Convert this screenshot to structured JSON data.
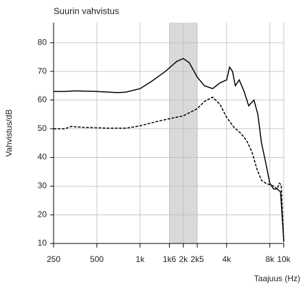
{
  "chart_data": {
    "type": "line",
    "title": "Suurin vahvistus",
    "ylabel": "Vahvistus/dB",
    "xlabel": "Taajuus (Hz)",
    "xscale": "log",
    "xlim": [
      250,
      10000
    ],
    "ylim": [
      10,
      87
    ],
    "grid": true,
    "band": [
      1600,
      2500
    ],
    "band_color": "#d9d9d9",
    "xticks": [
      250,
      500,
      {
        "value": 1000,
        "label": "1k"
      },
      {
        "value": 1600,
        "label": "1k6"
      },
      {
        "value": 2000,
        "label": "2k"
      },
      {
        "value": 2500,
        "label": "2k5"
      },
      {
        "value": 4000,
        "label": "4k"
      },
      {
        "value": 8000,
        "label": "8k"
      },
      {
        "value": 10000,
        "label": "10k"
      }
    ],
    "yticks": [
      10,
      20,
      30,
      40,
      50,
      60,
      70,
      80
    ],
    "series": [
      {
        "color": "#000000",
        "dash": "solid",
        "x": [
          250,
          300,
          350,
          500,
          700,
          800,
          1000,
          1200,
          1500,
          1800,
          2000,
          2200,
          2500,
          2800,
          3200,
          3600,
          4000,
          4200,
          4400,
          4600,
          4900,
          5300,
          5700,
          6200,
          6600,
          7000,
          7500,
          8000,
          8500,
          9000,
          9500,
          10000
        ],
        "values": [
          63,
          63,
          63.2,
          63,
          62.6,
          62.8,
          64,
          66.5,
          70,
          73.5,
          74.5,
          73,
          68,
          65,
          64,
          66,
          67,
          71.5,
          70,
          65,
          67,
          63,
          58,
          60,
          55,
          45,
          38,
          31,
          29,
          29,
          28,
          11
        ]
      },
      {
        "color": "#000000",
        "dash": "dashed",
        "x": [
          250,
          300,
          330,
          400,
          600,
          800,
          1000,
          1300,
          1600,
          2000,
          2500,
          2800,
          3200,
          3600,
          4000,
          4500,
          5000,
          5500,
          6000,
          6500,
          7000,
          7500,
          8000,
          8500,
          9000,
          9300,
          9600,
          10000
        ],
        "values": [
          50,
          50,
          50.8,
          50.5,
          50.2,
          50.2,
          51,
          52.5,
          53.5,
          54.5,
          57,
          59.5,
          61,
          58.5,
          54,
          50.5,
          48.5,
          46,
          42,
          36,
          32,
          31,
          30.5,
          30,
          29,
          31,
          30.5,
          10
        ]
      }
    ]
  }
}
